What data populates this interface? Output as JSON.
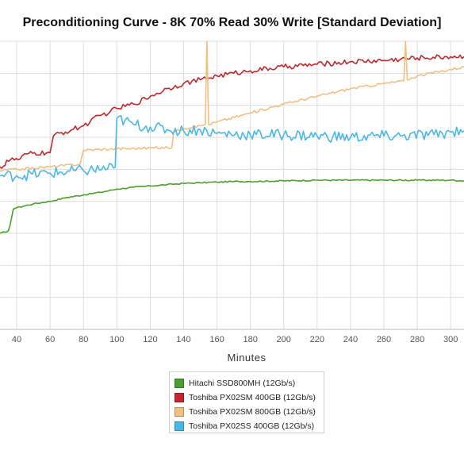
{
  "chart_data": {
    "type": "line",
    "title": "Preconditioning Curve - 8K 70% Read 30% Write [Standard Deviation]",
    "xlabel": "Minutes",
    "ylabel": "",
    "xlim": [
      30,
      308
    ],
    "ylim": [
      0,
      450
    ],
    "x_ticks": [
      40,
      60,
      80,
      100,
      120,
      140,
      160,
      180,
      200,
      220,
      240,
      260,
      280,
      300
    ],
    "y_gridlines": [
      50,
      100,
      150,
      200,
      250,
      300,
      350,
      400,
      450
    ],
    "grid": true,
    "legend_position": "bottom",
    "series": [
      {
        "name": "Hitachi SSD800MH (12Gb/s)",
        "color": "#4aa02c",
        "points": [
          [
            30,
            150
          ],
          [
            33,
            152
          ],
          [
            35,
            154
          ],
          [
            36,
            162
          ],
          [
            38,
            188
          ],
          [
            40,
            190
          ],
          [
            50,
            196
          ],
          [
            60,
            200
          ],
          [
            70,
            206
          ],
          [
            80,
            210
          ],
          [
            90,
            214
          ],
          [
            100,
            219
          ],
          [
            110,
            222
          ],
          [
            120,
            224
          ],
          [
            130,
            226
          ],
          [
            140,
            228
          ],
          [
            150,
            229
          ],
          [
            160,
            230
          ],
          [
            170,
            231
          ],
          [
            180,
            231
          ],
          [
            200,
            232
          ],
          [
            220,
            233
          ],
          [
            240,
            233
          ],
          [
            260,
            233
          ],
          [
            280,
            233
          ],
          [
            300,
            233
          ],
          [
            308,
            232
          ]
        ],
        "noise": 1
      },
      {
        "name": "Toshiba PX02SM 400GB (12Gb/s)",
        "color": "#c0282e",
        "points": [
          [
            30,
            254
          ],
          [
            33,
            256
          ],
          [
            34,
            264
          ],
          [
            42,
            266
          ],
          [
            46,
            274
          ],
          [
            60,
            276
          ],
          [
            62,
            302
          ],
          [
            80,
            318
          ],
          [
            90,
            334
          ],
          [
            96,
            340
          ],
          [
            100,
            345
          ],
          [
            110,
            352
          ],
          [
            120,
            364
          ],
          [
            130,
            376
          ],
          [
            140,
            384
          ],
          [
            150,
            390
          ],
          [
            160,
            396
          ],
          [
            170,
            400
          ],
          [
            180,
            404
          ],
          [
            200,
            410
          ],
          [
            220,
            414
          ],
          [
            240,
            418
          ],
          [
            260,
            420
          ],
          [
            280,
            424
          ],
          [
            300,
            426
          ],
          [
            308,
            426
          ]
        ],
        "noise": 4
      },
      {
        "name": "Toshiba PX02SM 800GB (12Gb/s)",
        "color": "#f0c080",
        "points": [
          [
            30,
            248
          ],
          [
            40,
            250
          ],
          [
            60,
            254
          ],
          [
            78,
            258
          ],
          [
            80,
            280
          ],
          [
            99,
            282
          ],
          [
            100,
            282
          ],
          [
            133,
            284
          ],
          [
            134,
            308
          ],
          [
            140,
            314
          ],
          [
            150,
            318
          ],
          [
            153,
            320
          ],
          [
            154,
            450
          ],
          [
            155,
            320
          ],
          [
            160,
            324
          ],
          [
            180,
            338
          ],
          [
            200,
            352
          ],
          [
            220,
            364
          ],
          [
            240,
            376
          ],
          [
            260,
            384
          ],
          [
            272,
            388
          ],
          [
            273,
            450
          ],
          [
            274,
            390
          ],
          [
            280,
            396
          ],
          [
            300,
            406
          ],
          [
            308,
            410
          ]
        ],
        "noise": 2
      },
      {
        "name": "Toshiba PX02SS 400GB (12Gb/s)",
        "color": "#4ab8e6",
        "points": [
          [
            30,
            240
          ],
          [
            40,
            240
          ],
          [
            60,
            244
          ],
          [
            80,
            248
          ],
          [
            98,
            252
          ],
          [
            99,
            253
          ],
          [
            100,
            330
          ],
          [
            110,
            320
          ],
          [
            120,
            316
          ],
          [
            130,
            312
          ],
          [
            140,
            310
          ],
          [
            150,
            312
          ],
          [
            160,
            306
          ],
          [
            180,
            304
          ],
          [
            200,
            304
          ],
          [
            220,
            302
          ],
          [
            240,
            300
          ],
          [
            260,
            302
          ],
          [
            270,
            302
          ],
          [
            290,
            304
          ],
          [
            300,
            308
          ],
          [
            306,
            312
          ],
          [
            308,
            310
          ]
        ],
        "noise": 9
      }
    ]
  }
}
